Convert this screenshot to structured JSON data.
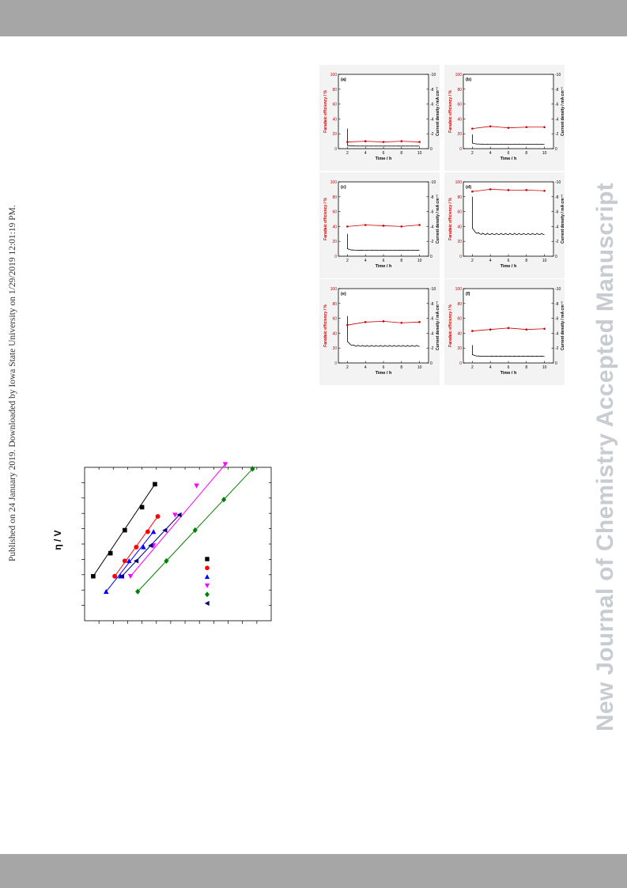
{
  "side_note": "Published on 24 January 2019. Downloaded by Iowa State University on 1/29/2019 12:01:19 PM.",
  "watermark": "New Journal of Chemistry Accepted Manuscript",
  "colors": {
    "band": "#a6a6a6",
    "fe": "#cc0000",
    "cd": "#000000",
    "watermark": "#c8cbd0"
  },
  "chart_data": [
    {
      "type": "scatter",
      "panel": "(a)",
      "xlabel": "Time / h",
      "ylabel": "Faradaic efficiency / %",
      "ylabel2": "Current density / mA cm⁻²",
      "xticks": [
        "2",
        "4",
        "6",
        "8",
        "10"
      ],
      "yticks": [
        "0",
        "20",
        "40",
        "60",
        "80",
        "100"
      ],
      "y2ticks": [
        "0",
        "-2",
        "-4",
        "-6",
        "-8",
        "-10"
      ],
      "xlim": [
        1,
        11
      ],
      "ylim": [
        0,
        100
      ],
      "y2lim": [
        0,
        -10
      ],
      "faradaic_efficiency": {
        "x": [
          2,
          4,
          6,
          8,
          10
        ],
        "y": [
          9,
          10,
          9,
          10,
          9
        ]
      },
      "current_density": {
        "start": -2.7,
        "steady": -0.35
      }
    },
    {
      "type": "scatter",
      "panel": "(b)",
      "xlabel": "Time / h",
      "ylabel": "Faradaic efficiency / %",
      "ylabel2": "Current density / mA cm⁻²",
      "xticks": [
        "2",
        "4",
        "6",
        "8",
        "10"
      ],
      "yticks": [
        "0",
        "20",
        "40",
        "60",
        "80",
        "100"
      ],
      "y2ticks": [
        "0",
        "-2",
        "-4",
        "-6",
        "-8",
        "-10"
      ],
      "xlim": [
        1,
        11
      ],
      "ylim": [
        0,
        100
      ],
      "y2lim": [
        0,
        -10
      ],
      "faradaic_efficiency": {
        "x": [
          2,
          4,
          6,
          8,
          10
        ],
        "y": [
          27,
          30,
          28,
          29,
          29
        ]
      },
      "current_density": {
        "start": -1.9,
        "steady": -0.6
      }
    },
    {
      "type": "scatter",
      "panel": "(c)",
      "xlabel": "Time / h",
      "ylabel": "Faradaic efficiency / %",
      "ylabel2": "Current density / mA cm⁻²",
      "xticks": [
        "2",
        "4",
        "6",
        "8",
        "10"
      ],
      "yticks": [
        "0",
        "20",
        "40",
        "60",
        "80",
        "100"
      ],
      "y2ticks": [
        "0",
        "-2",
        "-4",
        "-6",
        "-8",
        "-10"
      ],
      "xlim": [
        1,
        11
      ],
      "ylim": [
        0,
        100
      ],
      "y2lim": [
        0,
        -10
      ],
      "faradaic_efficiency": {
        "x": [
          2,
          4,
          6,
          8,
          10
        ],
        "y": [
          40,
          42,
          41,
          40,
          42
        ]
      },
      "current_density": {
        "start": -3.0,
        "steady": -0.8
      }
    },
    {
      "type": "scatter",
      "panel": "(d)",
      "xlabel": "Time / h",
      "ylabel": "Faradaic efficiency / %",
      "ylabel2": "Current density / mA cm⁻²",
      "xticks": [
        "2",
        "4",
        "6",
        "8",
        "10"
      ],
      "yticks": [
        "0",
        "20",
        "40",
        "60",
        "80",
        "100"
      ],
      "y2ticks": [
        "0",
        "-2",
        "-4",
        "-6",
        "-8",
        "-10"
      ],
      "xlim": [
        1,
        11
      ],
      "ylim": [
        0,
        100
      ],
      "y2lim": [
        0,
        -10
      ],
      "faradaic_efficiency": {
        "x": [
          2,
          4,
          6,
          8,
          10
        ],
        "y": [
          87,
          90,
          89,
          89,
          88
        ]
      },
      "current_density": {
        "start": -8.0,
        "steady": -3.0
      }
    },
    {
      "type": "scatter",
      "panel": "(e)",
      "xlabel": "Time / h",
      "ylabel": "Faradaic efficiency / %",
      "ylabel2": "Current density / mA cm⁻²",
      "xticks": [
        "2",
        "4",
        "6",
        "8",
        "10"
      ],
      "yticks": [
        "0",
        "20",
        "40",
        "60",
        "80",
        "100"
      ],
      "y2ticks": [
        "0",
        "-2",
        "-4",
        "-6",
        "-8",
        "-10"
      ],
      "xlim": [
        1,
        11
      ],
      "ylim": [
        0,
        100
      ],
      "y2lim": [
        0,
        -10
      ],
      "faradaic_efficiency": {
        "x": [
          2,
          4,
          6,
          8,
          10
        ],
        "y": [
          51,
          55,
          56,
          54,
          55
        ]
      },
      "current_density": {
        "start": -6.3,
        "steady": -2.3
      }
    },
    {
      "type": "scatter",
      "panel": "(f)",
      "xlabel": "Time / h",
      "ylabel": "Faradaic efficiency / %",
      "ylabel2": "Current density / mA cm⁻²",
      "xticks": [
        "2",
        "4",
        "6",
        "8",
        "10"
      ],
      "yticks": [
        "0",
        "20",
        "40",
        "60",
        "80",
        "100"
      ],
      "y2ticks": [
        "0",
        "-2",
        "-4",
        "-6",
        "-8",
        "-10"
      ],
      "xlim": [
        1,
        11
      ],
      "ylim": [
        0,
        100
      ],
      "y2lim": [
        0,
        -10
      ],
      "faradaic_efficiency": {
        "x": [
          2,
          4,
          6,
          8,
          10
        ],
        "y": [
          43,
          45,
          47,
          45,
          46
        ]
      },
      "current_density": {
        "start": -2.4,
        "steady": -0.9
      }
    },
    {
      "type": "scatter",
      "ylabel": "η / V",
      "xlim": [
        0,
        13
      ],
      "ylim": [
        0,
        10
      ],
      "series": [
        {
          "marker": "square",
          "color": "#000000",
          "x": [
            0.6,
            1.8,
            2.8,
            4.0,
            4.9
          ],
          "y": [
            2.9,
            4.4,
            5.9,
            7.4,
            8.9
          ]
        },
        {
          "marker": "circle",
          "color": "#ff0000",
          "x": [
            2.1,
            2.8,
            3.6,
            4.4,
            5.1
          ],
          "y": [
            2.9,
            3.9,
            4.8,
            5.8,
            6.8
          ]
        },
        {
          "marker": "triangle-up",
          "color": "#0000ff",
          "x": [
            1.5,
            2.5,
            3.1,
            4.1,
            4.8
          ],
          "y": [
            1.9,
            2.9,
            3.9,
            4.8,
            5.8
          ]
        },
        {
          "marker": "triangle-down",
          "color": "#ff00ff",
          "x": [
            3.2,
            4.8,
            6.3,
            7.8,
            9.8
          ],
          "y": [
            2.9,
            4.9,
            6.9,
            8.8,
            10.2
          ]
        },
        {
          "marker": "diamond",
          "color": "#008000",
          "x": [
            3.7,
            5.7,
            7.7,
            9.7,
            11.7
          ],
          "y": [
            1.9,
            3.9,
            5.9,
            7.9,
            9.9
          ]
        },
        {
          "marker": "triangle-left",
          "color": "#000080",
          "x": [
            2.6,
            3.6,
            4.6,
            5.6,
            6.6
          ],
          "y": [
            2.9,
            3.9,
            4.9,
            5.9,
            6.9
          ]
        }
      ],
      "legend": {
        "placement": "bottom-right",
        "markers": [
          "square",
          "circle",
          "triangle-up",
          "triangle-down",
          "diamond",
          "triangle-left"
        ]
      }
    }
  ]
}
